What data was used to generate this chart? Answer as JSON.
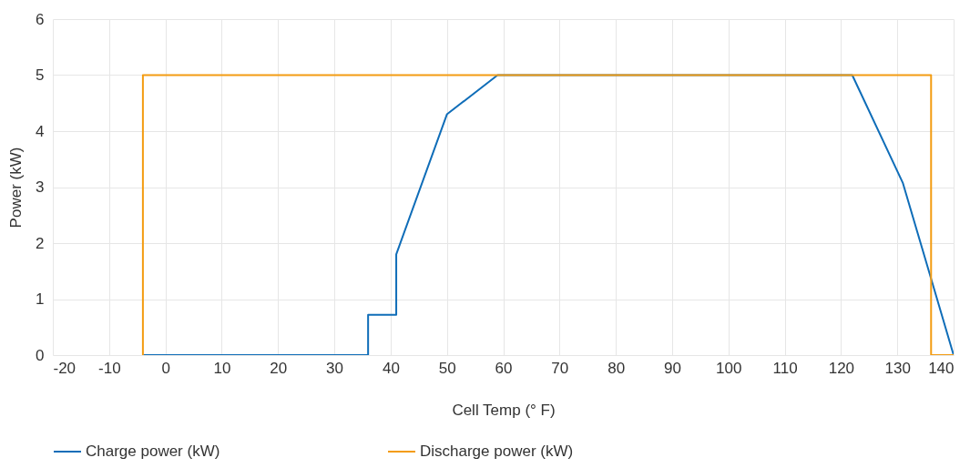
{
  "chart_data": {
    "type": "line",
    "xlabel": "Cell Temp (° F)",
    "ylabel": "Power (kW)",
    "xlim": [
      -20,
      140
    ],
    "xticks": [
      -20,
      -10,
      0,
      10,
      20,
      30,
      40,
      50,
      60,
      70,
      80,
      90,
      100,
      110,
      120,
      130,
      140
    ],
    "ylim": [
      0,
      6
    ],
    "yticks": [
      0,
      1,
      2,
      3,
      4,
      5,
      6
    ],
    "grid": true,
    "legend": "bottom",
    "marker": "none",
    "line_style": "solid",
    "series": [
      {
        "name": "Charge power (kW)",
        "color": "#0f6db8",
        "x": [
          -4,
          36,
          36,
          41,
          41,
          50,
          59,
          122,
          131,
          140
        ],
        "values": [
          0,
          0,
          0.72,
          0.72,
          1.8,
          4.3,
          5,
          5,
          3.07,
          0
        ]
      },
      {
        "name": "Discharge power (kW)",
        "color": "#f39c12",
        "x": [
          -4,
          -4,
          136,
          136,
          140
        ],
        "values": [
          0,
          5,
          5,
          0,
          0
        ]
      }
    ]
  }
}
